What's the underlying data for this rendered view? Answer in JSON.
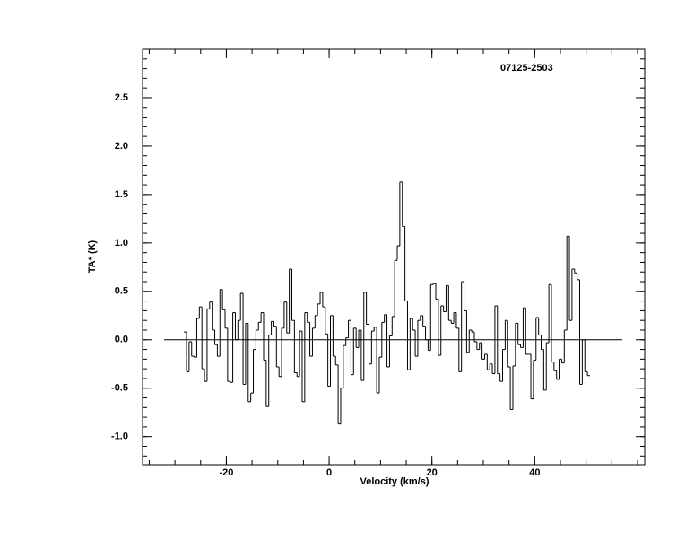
{
  "chart_data": {
    "type": "step",
    "annotation": "07125-2503",
    "x_label": "Velocity (km/s)",
    "y_label": "TA* (K)",
    "xlim": [
      -36.3,
      61.4
    ],
    "ylim": [
      -1.29,
      3.0
    ],
    "xticks": [
      -20,
      0,
      20,
      40
    ],
    "yticks": [
      {
        "value": -1,
        "label": "-1.0"
      },
      {
        "value": -0.5,
        "label": "-0.5"
      },
      {
        "value": 0,
        "label": "0.0"
      },
      {
        "value": 0.5,
        "label": "0.5"
      },
      {
        "value": 1,
        "label": "1.0"
      },
      {
        "value": 1.5,
        "label": "1.5"
      },
      {
        "value": 2,
        "label": "2.0"
      },
      {
        "value": 2.5,
        "label": "2.5"
      }
    ],
    "color": "#000000",
    "x": [
      -28,
      -27.5,
      -27,
      -26.5,
      -26,
      -25.5,
      -25,
      -24.5,
      -24,
      -23.5,
      -23,
      -22.5,
      -22,
      -21.5,
      -21,
      -20.5,
      -20,
      -19.5,
      -19,
      -18.5,
      -18,
      -17.5,
      -17,
      -16.5,
      -16,
      -15.5,
      -15,
      -14.5,
      -14,
      -13.5,
      -13,
      -12.5,
      -12,
      -11.5,
      -11,
      -10.5,
      -10,
      -9.5,
      -9,
      -8.5,
      -8,
      -7.5,
      -7,
      -6.5,
      -6,
      -5.5,
      -5,
      -4.5,
      -4,
      -3.5,
      -3,
      -2.5,
      -2,
      -1.5,
      -1,
      -0.5,
      0,
      0.5,
      1,
      1.5,
      2,
      2.5,
      3,
      3.5,
      4,
      4.5,
      5,
      5.5,
      6,
      6.5,
      7,
      7.5,
      8,
      8.5,
      9,
      9.5,
      10,
      10.5,
      11,
      11.5,
      12,
      12.5,
      13,
      13.5,
      14,
      14.5,
      15,
      15.5,
      16,
      16.5,
      17,
      17.5,
      18,
      18.5,
      19,
      19.5,
      20,
      20.5,
      21,
      21.5,
      22,
      22.5,
      23,
      23.5,
      24,
      24.5,
      25,
      25.5,
      26,
      26.5,
      27,
      27.5,
      28,
      28.5,
      29,
      29.5,
      30,
      30.5,
      31,
      31.5,
      32,
      32.5,
      33,
      33.5,
      34,
      34.5,
      35,
      35.5,
      36,
      36.5,
      37,
      37.5,
      38,
      38.5,
      39,
      39.5,
      40,
      40.5,
      41,
      41.5,
      42,
      42.5,
      43,
      43.5,
      44,
      44.5,
      45,
      45.5,
      46,
      46.5,
      47,
      47.5,
      48,
      48.5,
      49,
      49.5,
      50,
      50.5
    ],
    "values": [
      0.08,
      -0.33,
      -0.02,
      -0.17,
      -0.18,
      0.22,
      0.34,
      -0.3,
      -0.43,
      0.32,
      0.39,
      0.1,
      -0.05,
      -0.17,
      0.52,
      0.31,
      0.12,
      -0.43,
      -0.44,
      0.28,
      0.0,
      0.2,
      0.48,
      -0.46,
      0.17,
      -0.64,
      -0.55,
      -0.1,
      0.1,
      0.18,
      0.28,
      -0.21,
      -0.69,
      0.05,
      0.19,
      0.14,
      -0.28,
      -0.38,
      0.12,
      0.39,
      0.07,
      0.73,
      0.2,
      -0.34,
      -0.38,
      0.09,
      -0.64,
      0.28,
      0.18,
      -0.17,
      0.12,
      0.25,
      0.37,
      0.49,
      0.34,
      0.06,
      -0.48,
      0.25,
      -0.17,
      -0.26,
      -0.87,
      -0.5,
      -0.06,
      0.02,
      0.2,
      -0.36,
      0.12,
      -0.08,
      0.1,
      -0.42,
      0.49,
      0.16,
      -0.25,
      0.09,
      0.13,
      -0.55,
      -0.18,
      0.18,
      0.26,
      -0.28,
      0.04,
      0.24,
      0.82,
      0.97,
      1.63,
      1.17,
      0.4,
      -0.31,
      0.22,
      0.1,
      -0.17,
      0.2,
      0.25,
      0.14,
      0.0,
      -0.11,
      0.57,
      0.58,
      0.42,
      -0.16,
      0.35,
      0.29,
      0.56,
      0.2,
      0.17,
      0.28,
      0.12,
      -0.33,
      0.6,
      0.3,
      -0.13,
      0.1,
      0.08,
      -0.02,
      -0.1,
      -0.03,
      -0.2,
      -0.15,
      -0.31,
      -0.25,
      -0.35,
      0.35,
      -0.35,
      -0.43,
      -0.1,
      0.2,
      -0.28,
      -0.72,
      -0.27,
      0.17,
      -0.05,
      -0.08,
      0.33,
      -0.15,
      -0.15,
      -0.61,
      -0.21,
      0.23,
      0.05,
      -0.1,
      -0.52,
      -0.03,
      0.57,
      -0.23,
      -0.32,
      -0.41,
      -0.2,
      -0.24,
      0.1,
      1.07,
      0.2,
      0.73,
      0.69,
      0.62,
      -0.46,
      0.0,
      -0.33,
      -0.37
    ]
  }
}
